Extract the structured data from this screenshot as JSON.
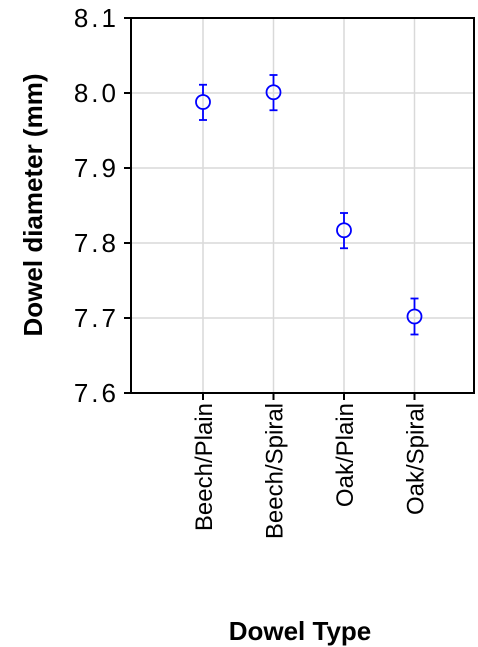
{
  "chart_data": {
    "type": "scatter",
    "xlabel": "Dowel Type",
    "ylabel": "Dowel diameter (mm)",
    "categories": [
      "Beech/Plain",
      "Beech/Spiral",
      "Oak/Plain",
      "Oak/Spiral"
    ],
    "values": [
      7.988,
      8.001,
      7.817,
      7.702
    ],
    "error_low": [
      7.964,
      7.977,
      7.793,
      7.678
    ],
    "error_high": [
      8.011,
      8.024,
      7.84,
      7.726
    ],
    "ylim": [
      7.6,
      8.1
    ],
    "yticks": [
      "7.6",
      "7.7",
      "7.8",
      "7.9",
      "8.0",
      "8.1"
    ],
    "grid": true,
    "marker_color": "#0000ff"
  }
}
